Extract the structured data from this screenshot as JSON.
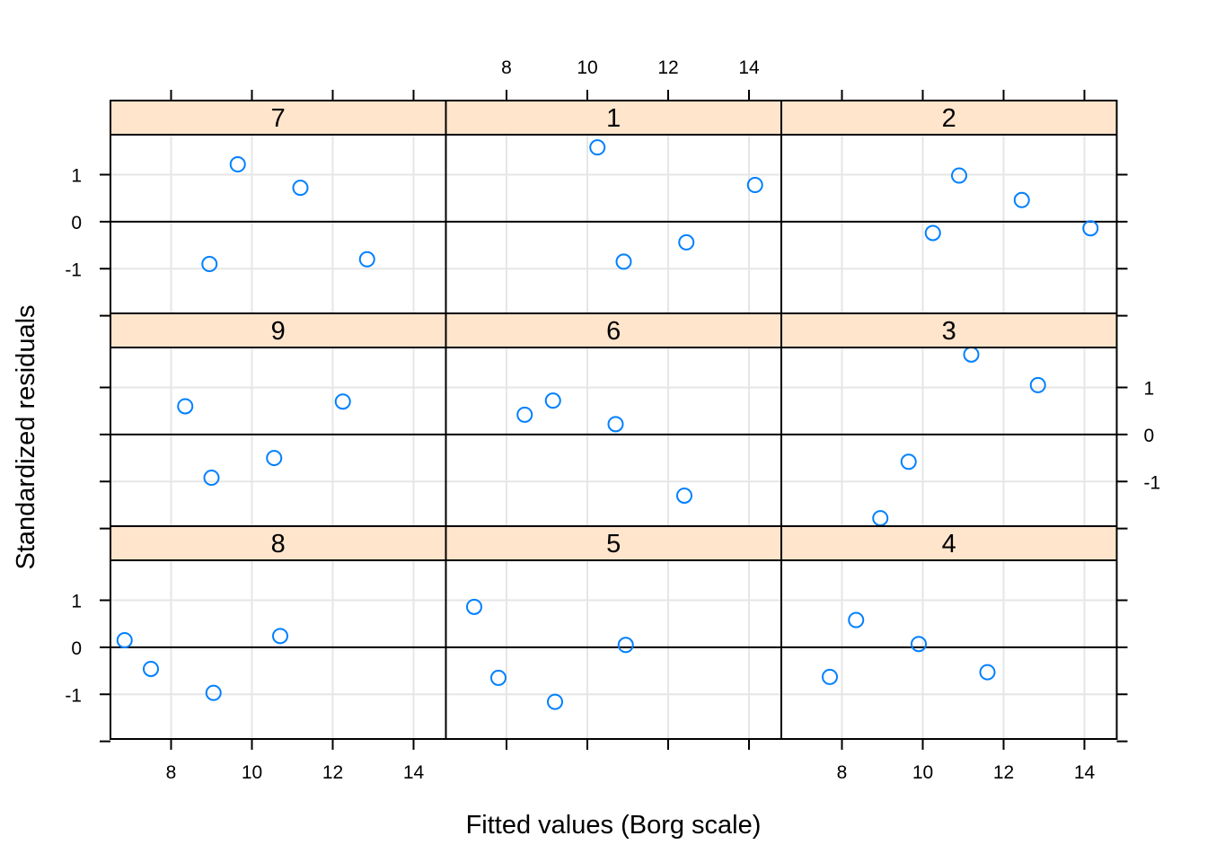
{
  "chart_data": {
    "type": "scatter",
    "xlabel": "Fitted values (Borg scale)",
    "ylabel": "Standardized residuals",
    "xlim": [
      6.5,
      14.8
    ],
    "ylim": [
      -1.95,
      1.85
    ],
    "x_ticks": [
      "8",
      "10",
      "12",
      "14"
    ],
    "y_ticks": [
      "-1",
      "0",
      "1"
    ],
    "reference_line_y": 0,
    "grid": true,
    "colors": {
      "strip": "#ffe5cc",
      "point": "#0080ff",
      "grid": "#e6e6e6",
      "frame": "#000000"
    },
    "panels": [
      {
        "label": "7",
        "points": [
          {
            "x": 9.65,
            "y": 1.22
          },
          {
            "x": 11.2,
            "y": 0.72
          },
          {
            "x": 8.95,
            "y": -0.9
          },
          {
            "x": 12.85,
            "y": -0.8
          }
        ]
      },
      {
        "label": "1",
        "points": [
          {
            "x": 10.25,
            "y": 1.58
          },
          {
            "x": 14.15,
            "y": 0.78
          },
          {
            "x": 10.9,
            "y": -0.85
          },
          {
            "x": 12.45,
            "y": -0.44
          }
        ]
      },
      {
        "label": "2",
        "points": [
          {
            "x": 10.9,
            "y": 0.98
          },
          {
            "x": 12.45,
            "y": 0.46
          },
          {
            "x": 10.25,
            "y": -0.24
          },
          {
            "x": 14.15,
            "y": -0.14
          }
        ]
      },
      {
        "label": "9",
        "points": [
          {
            "x": 8.35,
            "y": 0.6
          },
          {
            "x": 12.25,
            "y": 0.7
          },
          {
            "x": 9.0,
            "y": -0.92
          },
          {
            "x": 10.55,
            "y": -0.5
          }
        ]
      },
      {
        "label": "6",
        "points": [
          {
            "x": 8.45,
            "y": 0.42
          },
          {
            "x": 9.15,
            "y": 0.72
          },
          {
            "x": 10.7,
            "y": 0.22
          },
          {
            "x": 12.4,
            "y": -1.3
          }
        ]
      },
      {
        "label": "3",
        "points": [
          {
            "x": 11.2,
            "y": 1.7
          },
          {
            "x": 12.85,
            "y": 1.05
          },
          {
            "x": 9.65,
            "y": -0.58
          },
          {
            "x": 8.95,
            "y": -1.78
          }
        ]
      },
      {
        "label": "8",
        "points": [
          {
            "x": 6.85,
            "y": 0.15
          },
          {
            "x": 7.5,
            "y": -0.46
          },
          {
            "x": 9.05,
            "y": -0.97
          },
          {
            "x": 10.7,
            "y": 0.24
          }
        ]
      },
      {
        "label": "5",
        "points": [
          {
            "x": 7.2,
            "y": 0.86
          },
          {
            "x": 7.8,
            "y": -0.65
          },
          {
            "x": 9.2,
            "y": -1.16
          },
          {
            "x": 10.95,
            "y": 0.05
          }
        ]
      },
      {
        "label": "4",
        "points": [
          {
            "x": 8.35,
            "y": 0.58
          },
          {
            "x": 7.7,
            "y": -0.63
          },
          {
            "x": 9.9,
            "y": 0.07
          },
          {
            "x": 11.6,
            "y": -0.53
          }
        ]
      }
    ]
  }
}
